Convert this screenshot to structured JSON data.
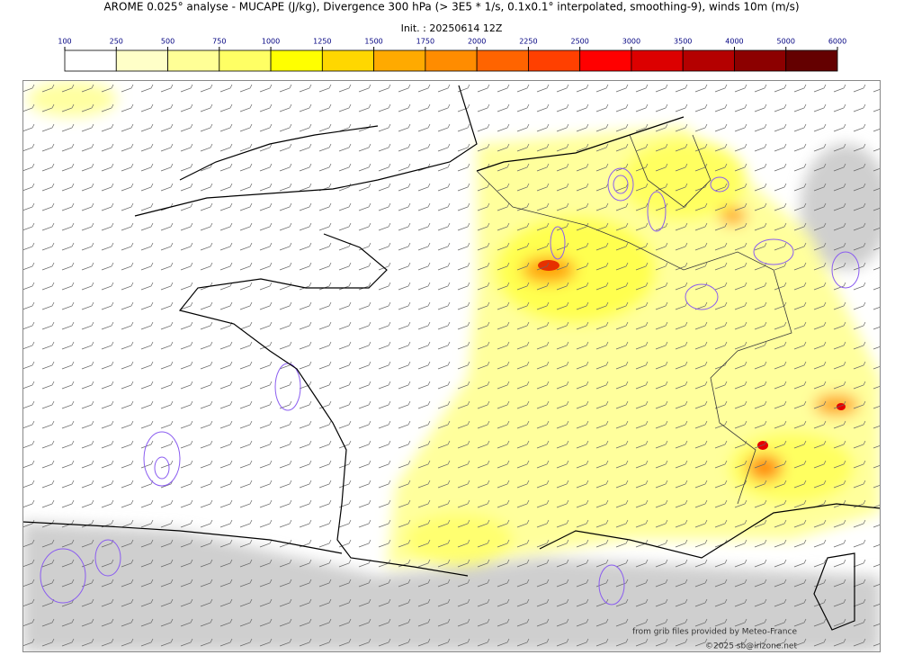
{
  "title": "AROME 0.025° analyse - MUCAPE (J/kg), Divergence 300 hPa (> 3E5 * 1/s, 0.1x0.1° interpolated, smoothing-9), winds 10m (m/s)",
  "init": "Init. : 20250614 12Z",
  "colorbar": {
    "levels": [
      100,
      250,
      500,
      750,
      1000,
      1250,
      1500,
      1750,
      2000,
      2250,
      2500,
      3000,
      3500,
      4000,
      5000,
      6000
    ],
    "colors": [
      "#ffffff",
      "#ffffc8",
      "#ffff96",
      "#ffff64",
      "#ffff00",
      "#ffd700",
      "#ffaa00",
      "#ff8c00",
      "#ff6400",
      "#ff4000",
      "#ff0000",
      "#dc0000",
      "#b40000",
      "#8c0000",
      "#640000"
    ]
  },
  "credits": [
    "from grib files provided by Meteo-France",
    "©2025 sb@irizone.net"
  ]
}
